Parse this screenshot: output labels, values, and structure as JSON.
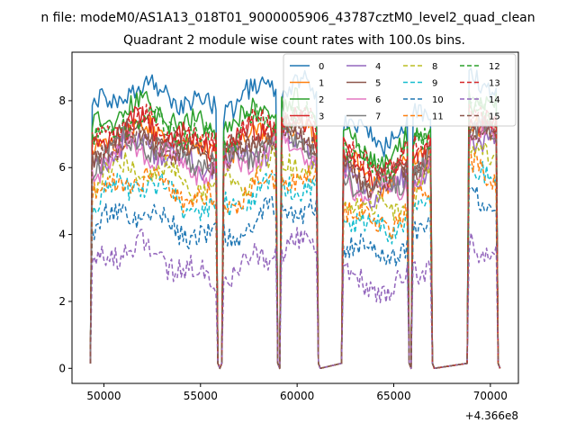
{
  "figure": {
    "suptitle": "n file: modeM0/AS1A13_018T01_9000005906_43787cztM0_level2_quad_clean"
  },
  "chart_data": {
    "type": "line",
    "title": "Quadrant 2 module wise count rates with 100.0s bins.",
    "xlabel": "",
    "ylabel": "",
    "x_offset_label": "+4.366e8",
    "xlim": [
      48350,
      71450
    ],
    "ylim": [
      -0.45,
      9.45
    ],
    "x_ticks": [
      {
        "value": 50000,
        "label": "50000"
      },
      {
        "value": 55000,
        "label": "55000"
      },
      {
        "value": 60000,
        "label": "60000"
      },
      {
        "value": 65000,
        "label": "65000"
      },
      {
        "value": 70000,
        "label": "70000"
      }
    ],
    "y_ticks": [
      {
        "value": 0,
        "label": "0"
      },
      {
        "value": 2,
        "label": "2"
      },
      {
        "value": 4,
        "label": "4"
      },
      {
        "value": 6,
        "label": "6"
      },
      {
        "value": 8,
        "label": "8"
      }
    ],
    "grid": false,
    "legend_position": "top-right",
    "legend_columns": 4,
    "segments": [
      [
        49400,
        55800
      ],
      [
        56200,
        58900
      ],
      [
        59200,
        61000
      ],
      [
        62400,
        65700
      ],
      [
        66000,
        66900
      ],
      [
        68900,
        70300
      ]
    ],
    "series": [
      {
        "name": "0",
        "color": "#1f77b4",
        "dash": "solid",
        "level": 7.9
      },
      {
        "name": "1",
        "color": "#ff7f0e",
        "dash": "solid",
        "level": 6.6
      },
      {
        "name": "2",
        "color": "#2ca02c",
        "dash": "solid",
        "level": 7.3
      },
      {
        "name": "3",
        "color": "#d62728",
        "dash": "solid",
        "level": 6.8
      },
      {
        "name": "4",
        "color": "#9467bd",
        "dash": "solid",
        "level": 6.2
      },
      {
        "name": "5",
        "color": "#8c564b",
        "dash": "solid",
        "level": 6.5
      },
      {
        "name": "6",
        "color": "#e377c2",
        "dash": "solid",
        "level": 6.1
      },
      {
        "name": "7",
        "color": "#7f7f7f",
        "dash": "solid",
        "level": 6.3
      },
      {
        "name": "8",
        "color": "#bcbd22",
        "dash": "dashed",
        "level": 5.6
      },
      {
        "name": "9",
        "color": "#17becf",
        "dash": "dashed",
        "level": 5.0
      },
      {
        "name": "10",
        "color": "#1f77b4",
        "dash": "dashed",
        "level": 4.2
      },
      {
        "name": "11",
        "color": "#ff7f0e",
        "dash": "dashed",
        "level": 5.2
      },
      {
        "name": "12",
        "color": "#2ca02c",
        "dash": "dashed",
        "level": 7.0
      },
      {
        "name": "13",
        "color": "#d62728",
        "dash": "dashed",
        "level": 6.9
      },
      {
        "name": "14",
        "color": "#9467bd",
        "dash": "dashed",
        "level": 3.1
      },
      {
        "name": "15",
        "color": "#8c564b",
        "dash": "dashed",
        "level": 6.4
      }
    ]
  }
}
